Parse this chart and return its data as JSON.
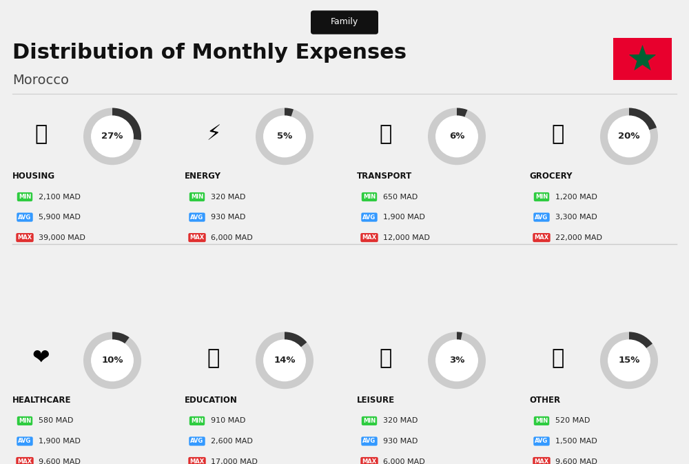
{
  "title": "Distribution of Monthly Expenses",
  "subtitle": "Family",
  "country": "Morocco",
  "bg_color": "#f0f0f0",
  "title_color": "#111111",
  "categories": [
    {
      "name": "HOUSING",
      "pct": 27,
      "min": "2,100 MAD",
      "avg": "5,900 MAD",
      "max": "39,000 MAD",
      "row": 0,
      "col": 0
    },
    {
      "name": "ENERGY",
      "pct": 5,
      "min": "320 MAD",
      "avg": "930 MAD",
      "max": "6,000 MAD",
      "row": 0,
      "col": 1
    },
    {
      "name": "TRANSPORT",
      "pct": 6,
      "min": "650 MAD",
      "avg": "1,900 MAD",
      "max": "12,000 MAD",
      "row": 0,
      "col": 2
    },
    {
      "name": "GROCERY",
      "pct": 20,
      "min": "1,200 MAD",
      "avg": "3,300 MAD",
      "max": "22,000 MAD",
      "row": 0,
      "col": 3
    },
    {
      "name": "HEALTHCARE",
      "pct": 10,
      "min": "580 MAD",
      "avg": "1,900 MAD",
      "max": "9,600 MAD",
      "row": 1,
      "col": 0
    },
    {
      "name": "EDUCATION",
      "pct": 14,
      "min": "910 MAD",
      "avg": "2,600 MAD",
      "max": "17,000 MAD",
      "row": 1,
      "col": 1
    },
    {
      "name": "LEISURE",
      "pct": 3,
      "min": "320 MAD",
      "avg": "930 MAD",
      "max": "6,000 MAD",
      "row": 1,
      "col": 2
    },
    {
      "name": "OTHER",
      "pct": 15,
      "min": "520 MAD",
      "avg": "1,500 MAD",
      "max": "9,600 MAD",
      "row": 1,
      "col": 3
    }
  ],
  "min_color": "#2ecc40",
  "avg_color": "#3399ff",
  "max_color": "#e03030",
  "label_color": "#ffffff",
  "donut_filled": "#333333",
  "donut_empty": "#cccccc",
  "category_label_color": "#111111",
  "value_text_color": "#222222",
  "flag_red": "#e8002d",
  "flag_green": "#006233",
  "panel_bg": "#ffffff"
}
